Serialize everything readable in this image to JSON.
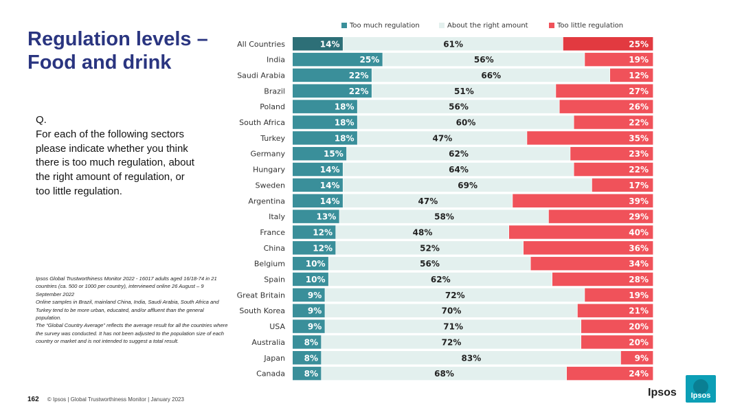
{
  "page": {
    "title_line1": "Regulation levels –",
    "title_line2": "Food and drink",
    "question_label": "Q.",
    "question_text": "For each of the following sectors please indicate whether you think there is too much regulation, about the right amount of regulation, or too little regulation.",
    "notes": [
      "Ipsos Global Trustworthiness Monitor 2022 - 16017 adults aged 16/18-74 in 21 countries (ca. 500 or 1000 per country), interviewed online 26 August – 9 September 2022",
      "Online samples in Brazil, mainland China, India, Saudi Arabia, South Africa and Turkey tend to be more urban, educated, and/or affluent than the general population.",
      "The “Global Country Average” reflects the average result for all the countries where the survey was conducted. It has not been adjusted to the population size of each country or market and is not intended to suggest a total result."
    ],
    "page_number": "162",
    "footer_text": "© Ipsos | Global Trustworthiness Monitor | January 2023",
    "logo_text": "Ipsos",
    "logo_badge_text": "Ipsos"
  },
  "colors": {
    "too_much": "#3a8f9a",
    "too_much_highlight": "#2d6f77",
    "right": "#e3f0ee",
    "too_little": "#f0525a",
    "too_little_highlight": "#e23a40",
    "label_on_dark": "#ffffff",
    "label_on_light": "#222222",
    "title": "#2a3580",
    "logo_bg": "#0c9fb6"
  },
  "chart_data": {
    "type": "bar",
    "orientation": "horizontal-stacked-100",
    "legend_position": "top",
    "series_names": [
      "Too much regulation",
      "About the right amount",
      "Too little regulation"
    ],
    "categories": [
      "All Countries",
      "India",
      "Saudi Arabia",
      "Brazil",
      "Poland",
      "South Africa",
      "Turkey",
      "Germany",
      "Hungary",
      "Sweden",
      "Argentina",
      "Italy",
      "France",
      "China",
      "Belgium",
      "Spain",
      "Great Britain",
      "South Korea",
      "USA",
      "Australia",
      "Japan",
      "Canada"
    ],
    "series": [
      {
        "name": "Too much regulation",
        "values": [
          14,
          25,
          22,
          22,
          18,
          18,
          18,
          15,
          14,
          14,
          14,
          13,
          12,
          12,
          10,
          10,
          9,
          9,
          9,
          8,
          8,
          8
        ]
      },
      {
        "name": "About the right amount",
        "values": [
          61,
          56,
          66,
          51,
          56,
          60,
          47,
          62,
          64,
          69,
          47,
          58,
          48,
          52,
          56,
          62,
          72,
          70,
          71,
          72,
          83,
          68
        ]
      },
      {
        "name": "Too little regulation",
        "values": [
          25,
          19,
          12,
          27,
          26,
          22,
          35,
          23,
          22,
          17,
          39,
          29,
          40,
          36,
          34,
          28,
          19,
          21,
          20,
          20,
          9,
          24
        ]
      }
    ],
    "value_suffix": "%",
    "xlim": [
      0,
      100
    ]
  }
}
